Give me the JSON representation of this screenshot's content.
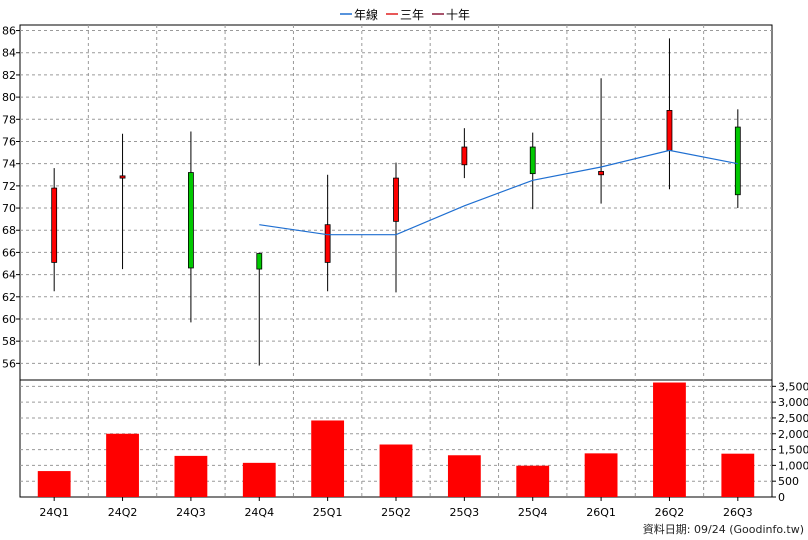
{
  "legend": [
    {
      "label": "年線",
      "color": "#1f6fd1"
    },
    {
      "label": "三年",
      "color": "#e02020"
    },
    {
      "label": "十年",
      "color": "#8b1a3a"
    }
  ],
  "source_note": "資料日期: 09/24  (Goodinfo.tw)",
  "chart_data": [
    {
      "type": "candlestick",
      "categories": [
        "24Q1",
        "24Q2",
        "24Q3",
        "24Q4",
        "25Q1",
        "25Q2",
        "25Q3",
        "25Q4",
        "26Q1",
        "26Q2",
        "26Q3"
      ],
      "ylim": [
        54.5,
        86.5
      ],
      "yticks": [
        56,
        58,
        60,
        62,
        64,
        66,
        68,
        70,
        72,
        74,
        76,
        78,
        80,
        82,
        84,
        86
      ],
      "candles": [
        {
          "open": 65.1,
          "close": 71.8,
          "high": 73.6,
          "low": 62.5,
          "color": "#ff0000"
        },
        {
          "open": 72.7,
          "close": 72.9,
          "high": 76.7,
          "low": 64.5,
          "color": "#ff0000"
        },
        {
          "open": 73.2,
          "close": 64.6,
          "high": 76.9,
          "low": 59.7,
          "color": "#00c800"
        },
        {
          "open": 65.9,
          "close": 64.5,
          "high": 66.0,
          "low": 55.8,
          "color": "#00c800"
        },
        {
          "open": 65.1,
          "close": 68.5,
          "high": 73.0,
          "low": 62.5,
          "color": "#ff0000"
        },
        {
          "open": 68.8,
          "close": 72.7,
          "high": 74.1,
          "low": 62.4,
          "color": "#ff0000"
        },
        {
          "open": 73.9,
          "close": 75.5,
          "high": 77.2,
          "low": 72.7,
          "color": "#ff0000"
        },
        {
          "open": 75.5,
          "close": 73.1,
          "high": 76.8,
          "low": 69.9,
          "color": "#00c800"
        },
        {
          "open": 73.0,
          "close": 73.3,
          "high": 81.7,
          "low": 70.4,
          "color": "#ff0000"
        },
        {
          "open": 75.2,
          "close": 78.8,
          "high": 85.3,
          "low": 71.7,
          "color": "#ff0000"
        },
        {
          "open": 77.3,
          "close": 71.2,
          "high": 78.9,
          "low": 70.0,
          "color": "#00c800"
        }
      ],
      "series": [
        {
          "name": "年線",
          "values": [
            null,
            null,
            null,
            68.5,
            67.6,
            67.6,
            70.2,
            72.5,
            73.7,
            75.2,
            74.0
          ]
        }
      ]
    },
    {
      "type": "bar",
      "categories": [
        "24Q1",
        "24Q2",
        "24Q3",
        "24Q4",
        "25Q1",
        "25Q2",
        "25Q3",
        "25Q4",
        "26Q1",
        "26Q2",
        "26Q3"
      ],
      "values": [
        820,
        2000,
        1300,
        1080,
        2420,
        1660,
        1320,
        990,
        1380,
        3620,
        1370
      ],
      "ylim": [
        0,
        3700
      ],
      "yticks": [
        0,
        500,
        1000,
        1500,
        2000,
        2500,
        3000,
        3500
      ],
      "ytick_labels": [
        "0",
        "500",
        "1,000",
        "1,500",
        "2,000",
        "2,500",
        "3,000",
        "3,500"
      ],
      "bar_color": "#ff0000"
    }
  ]
}
